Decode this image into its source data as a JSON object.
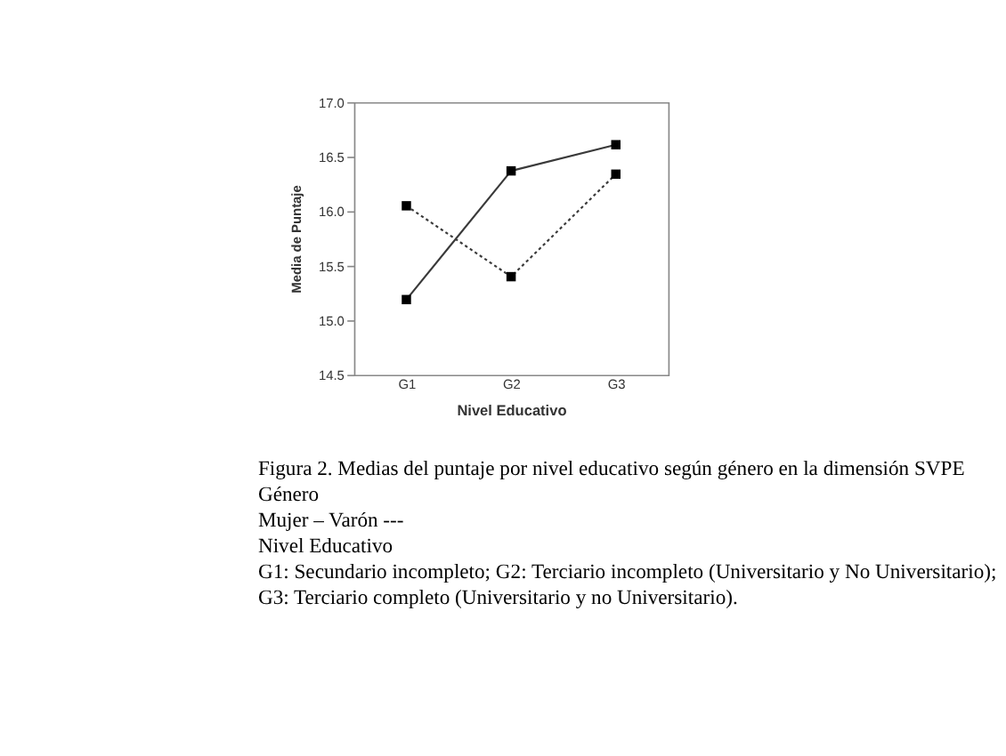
{
  "chart_data": {
    "type": "line",
    "xlabel": "Nivel Educativo",
    "ylabel": "Media de Puntaje",
    "categories": [
      "G1",
      "G2",
      "G3"
    ],
    "series": [
      {
        "color": "#3a3a3a",
        "values": [
          15.19,
          16.37,
          16.61
        ],
        "line_style": "solid"
      },
      {
        "color": "#3a3a3a",
        "values": [
          16.05,
          15.4,
          16.34
        ],
        "line_style": "dotted"
      }
    ],
    "ylim": [
      14.5,
      17.0
    ],
    "yticks": [
      {
        "value": 14.5,
        "label": "14.5"
      },
      {
        "value": 15,
        "label": "15.0"
      },
      {
        "value": 15.5,
        "label": "15.5"
      },
      {
        "value": 16,
        "label": "16.0"
      },
      {
        "value": 16.5,
        "label": "16.5"
      },
      {
        "value": 17,
        "label": "17.0"
      }
    ],
    "grid": false,
    "legend": false,
    "marker": "square",
    "annotations": [
      "Figura 2. Medias del puntaje por nivel educativo según género en la dimensión SVPE",
      "Género",
      "Mujer –  Varón ---",
      "Nivel Educativo",
      "G1: Secundario incompleto; G2: Terciario incompleto (Universitario y No Universitario);",
      "G3: Terciario completo (Universitario y no Universitario)."
    ]
  }
}
